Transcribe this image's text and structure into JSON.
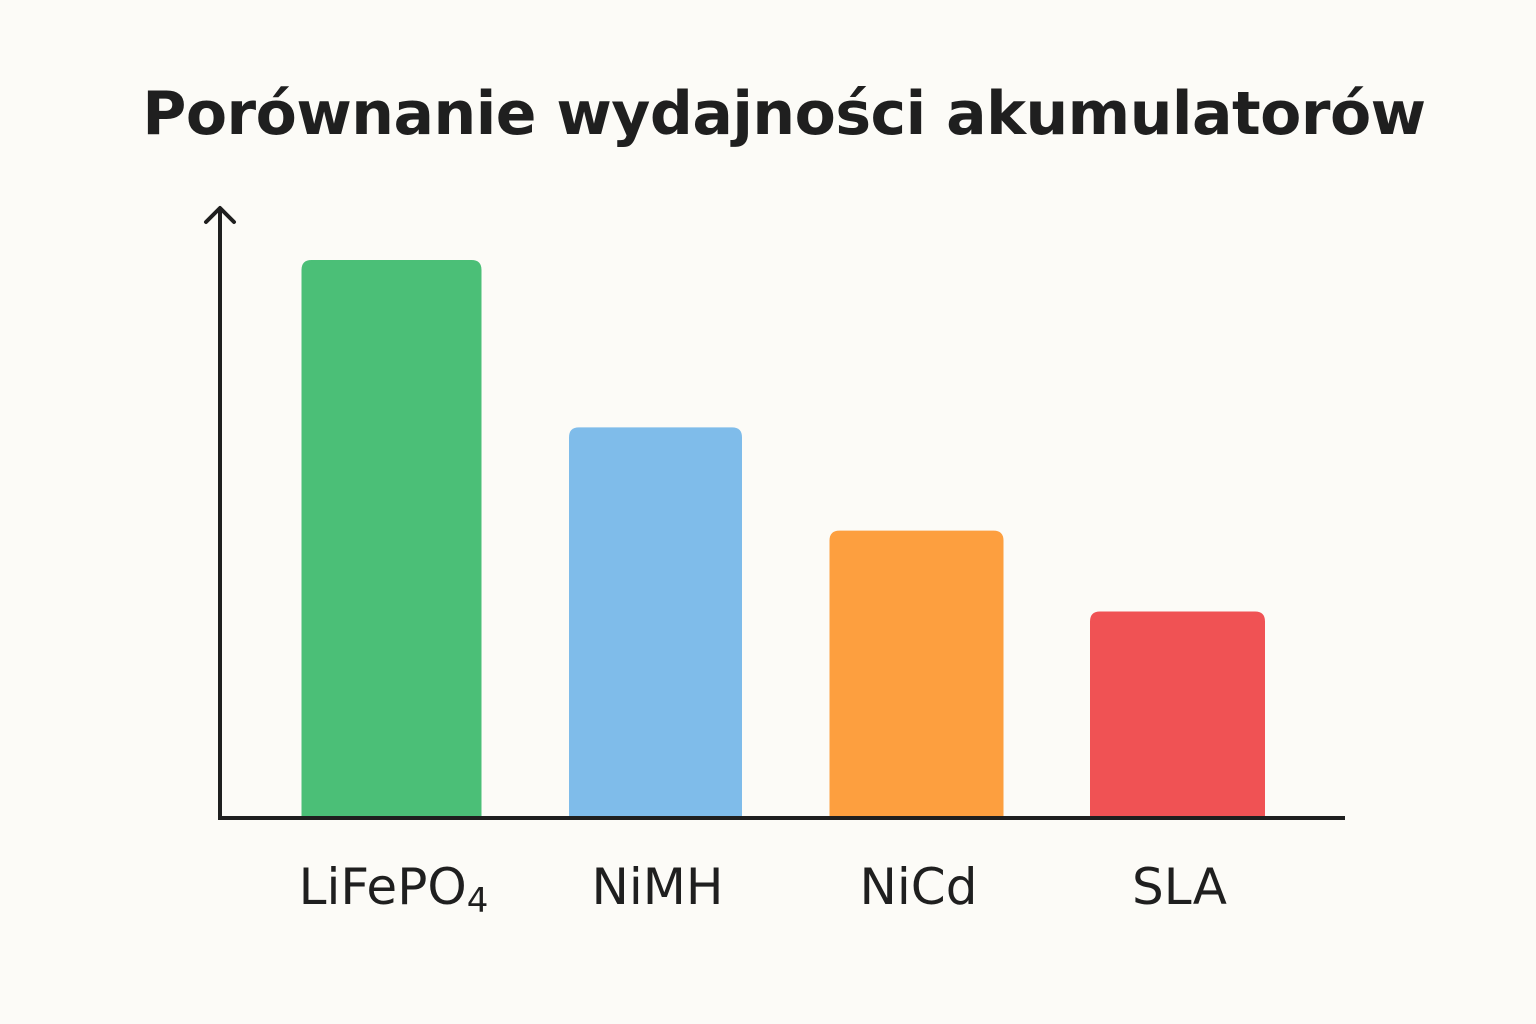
{
  "chart_data": {
    "type": "bar",
    "title": "Porównanie wydajności akumulatorów",
    "xlabel": "",
    "ylabel": "",
    "categories": [
      {
        "label": "LiFePO",
        "subscript": "4"
      },
      {
        "label": "NiMH",
        "subscript": ""
      },
      {
        "label": "NiCd",
        "subscript": ""
      },
      {
        "label": "SLA",
        "subscript": ""
      }
    ],
    "values": [
      100,
      70,
      51.5,
      37
    ],
    "ylim": [
      0,
      100
    ],
    "colors": [
      "#4bbf77",
      "#7fbcea",
      "#fd9f3f",
      "#f05254"
    ],
    "axis_color": "#1f1f1f",
    "grid": false,
    "legend": "none",
    "y_ticks_shown": false
  }
}
